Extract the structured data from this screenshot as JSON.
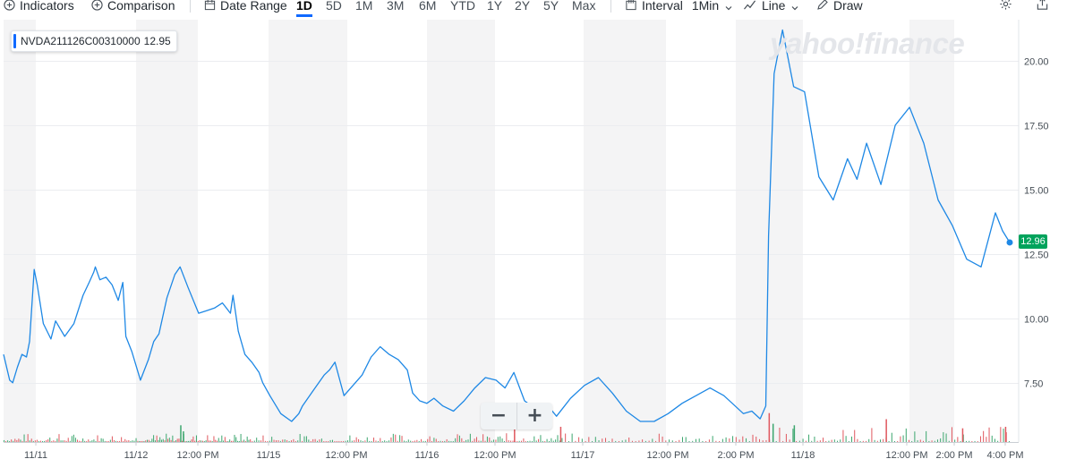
{
  "toolbar": {
    "indicators": "Indicators",
    "comparison": "Comparison",
    "date_range": "Date Range",
    "ranges": [
      "1D",
      "5D",
      "1M",
      "3M",
      "6M",
      "YTD",
      "1Y",
      "2Y",
      "5Y",
      "Max"
    ],
    "active_range": "1D",
    "interval": "Interval",
    "interval_value": "1Min",
    "chart_type": "Line",
    "draw": "Draw"
  },
  "watermark": "yahoo!finance",
  "legend": {
    "symbol": "NVDA211126C00310000",
    "value": "12.95"
  },
  "last_price": "12.96",
  "colors": {
    "line": "#1e88e5",
    "up_volume": "#3ca66e",
    "down_volume": "#e0585f",
    "band": "#f4f4f5",
    "price_tag": "#00a35c",
    "active": "#0f69ff"
  },
  "chart_data": {
    "type": "line",
    "title": "",
    "xlabel": "",
    "ylabel": "",
    "y_ticks": [
      7.5,
      10.0,
      12.5,
      15.0,
      17.5,
      20.0
    ],
    "y_tick_labels": [
      "7.50",
      "10.00",
      "12.50",
      "15.00",
      "17.50",
      "20.00"
    ],
    "ylim": [
      5.2,
      21.6
    ],
    "x_tick_labels": [
      "11/11",
      "11/12",
      "12:00 PM",
      "11/15",
      "12:00 PM",
      "11/16",
      "12:00 PM",
      "11/17",
      "12:00 PM",
      "2:00 PM",
      "11/18",
      "12:00 PM",
      "2:00 PM",
      "4:00 PM"
    ],
    "sessions": [
      "11/11",
      "11/12",
      "11/15",
      "11/16",
      "11/17",
      "11/18"
    ],
    "series": [
      {
        "name": "NVDA211126C00310000",
        "t": [
          0.0,
          0.1,
          0.2,
          0.3,
          0.45,
          0.6,
          0.75,
          0.85,
          1.0,
          1.1,
          1.3,
          1.55,
          1.7,
          1.85,
          2.0,
          2.3,
          2.6,
          2.8,
          2.95,
          3.0,
          3.15,
          3.35,
          3.55,
          3.75,
          3.9,
          4.0,
          4.2,
          4.5,
          4.8,
          5.0,
          5.2,
          5.5,
          5.8,
          6.0,
          6.3,
          6.7,
          7.0,
          7.3,
          7.6,
          7.9,
          8.0,
          8.2,
          8.45,
          8.7,
          8.9,
          9.0,
          9.2,
          9.5,
          9.8,
          10.0,
          10.1,
          10.25,
          10.4,
          10.55,
          10.7,
          10.85,
          11.0,
          11.25,
          11.5,
          11.75,
          12.0,
          12.25,
          12.5,
          12.75,
          13.0,
          13.15,
          13.35,
          13.55,
          13.75,
          14.0,
          14.3,
          14.6,
          14.9,
          15.2,
          15.5,
          15.75,
          16.0,
          16.3,
          16.6,
          16.9,
          17.2,
          17.5,
          17.75,
          18.0,
          18.25,
          18.5,
          18.75,
          19.0,
          19.25,
          19.5,
          19.75,
          20.0,
          20.25,
          20.45,
          20.6,
          20.75,
          20.9,
          21.0,
          21.05,
          21.15,
          21.3,
          21.5,
          21.7,
          22.0,
          22.3,
          22.6,
          22.8,
          23.0,
          23.3,
          23.6,
          23.9,
          24.2,
          24.5,
          24.8,
          25.1,
          25.4,
          25.7,
          25.85,
          26.0
        ],
        "values": [
          8.6,
          8.1,
          7.6,
          7.5,
          8.1,
          8.6,
          8.5,
          9.1,
          11.9,
          11.3,
          9.8,
          9.2,
          9.9,
          9.6,
          9.3,
          9.8,
          10.9,
          11.4,
          11.8,
          12.0,
          11.5,
          11.6,
          11.3,
          10.7,
          11.4,
          9.3,
          8.7,
          7.6,
          8.4,
          9.1,
          9.4,
          10.8,
          11.7,
          12.0,
          11.2,
          10.2,
          10.3,
          10.4,
          10.6,
          10.2,
          10.9,
          9.5,
          8.6,
          8.3,
          7.9,
          7.5,
          7.0,
          6.3,
          6.0,
          6.3,
          6.6,
          6.9,
          7.2,
          7.5,
          7.8,
          8.0,
          8.3,
          7.0,
          7.4,
          7.8,
          8.5,
          8.9,
          8.6,
          8.4,
          8.0,
          7.1,
          6.8,
          6.7,
          6.9,
          6.6,
          6.4,
          6.8,
          7.3,
          7.7,
          7.6,
          7.3,
          7.9,
          6.8,
          6.5,
          6.7,
          6.2,
          6.9,
          7.4,
          7.7,
          7.1,
          6.4,
          6.0,
          6.0,
          6.3,
          6.7,
          7.0,
          7.3,
          7.0,
          6.6,
          6.3,
          6.4,
          6.1,
          6.6,
          13.2,
          19.5,
          21.2,
          19.0,
          18.8,
          15.5,
          14.6,
          16.2,
          15.4,
          16.8,
          15.2,
          17.5,
          18.2,
          16.8,
          14.6,
          13.6,
          12.3,
          12.0,
          14.1,
          13.4,
          12.95
        ]
      }
    ],
    "volume": {
      "notable_bars": [
        {
          "t": 6.0,
          "value": 0.55,
          "dir": "up"
        },
        {
          "t": 6.1,
          "value": 0.35,
          "dir": "up"
        },
        {
          "t": 16.0,
          "value": 0.45,
          "dir": "down"
        },
        {
          "t": 17.3,
          "value": 0.5,
          "dir": "down"
        },
        {
          "t": 21.05,
          "value": 0.95,
          "dir": "down"
        },
        {
          "t": 21.12,
          "value": 0.6,
          "dir": "up"
        },
        {
          "t": 21.5,
          "value": 0.55,
          "dir": "up"
        },
        {
          "t": 23.4,
          "value": 0.75,
          "dir": "down"
        },
        {
          "t": 25.0,
          "value": 0.45,
          "dir": "down"
        },
        {
          "t": 25.9,
          "value": 0.5,
          "dir": "down"
        }
      ]
    }
  }
}
